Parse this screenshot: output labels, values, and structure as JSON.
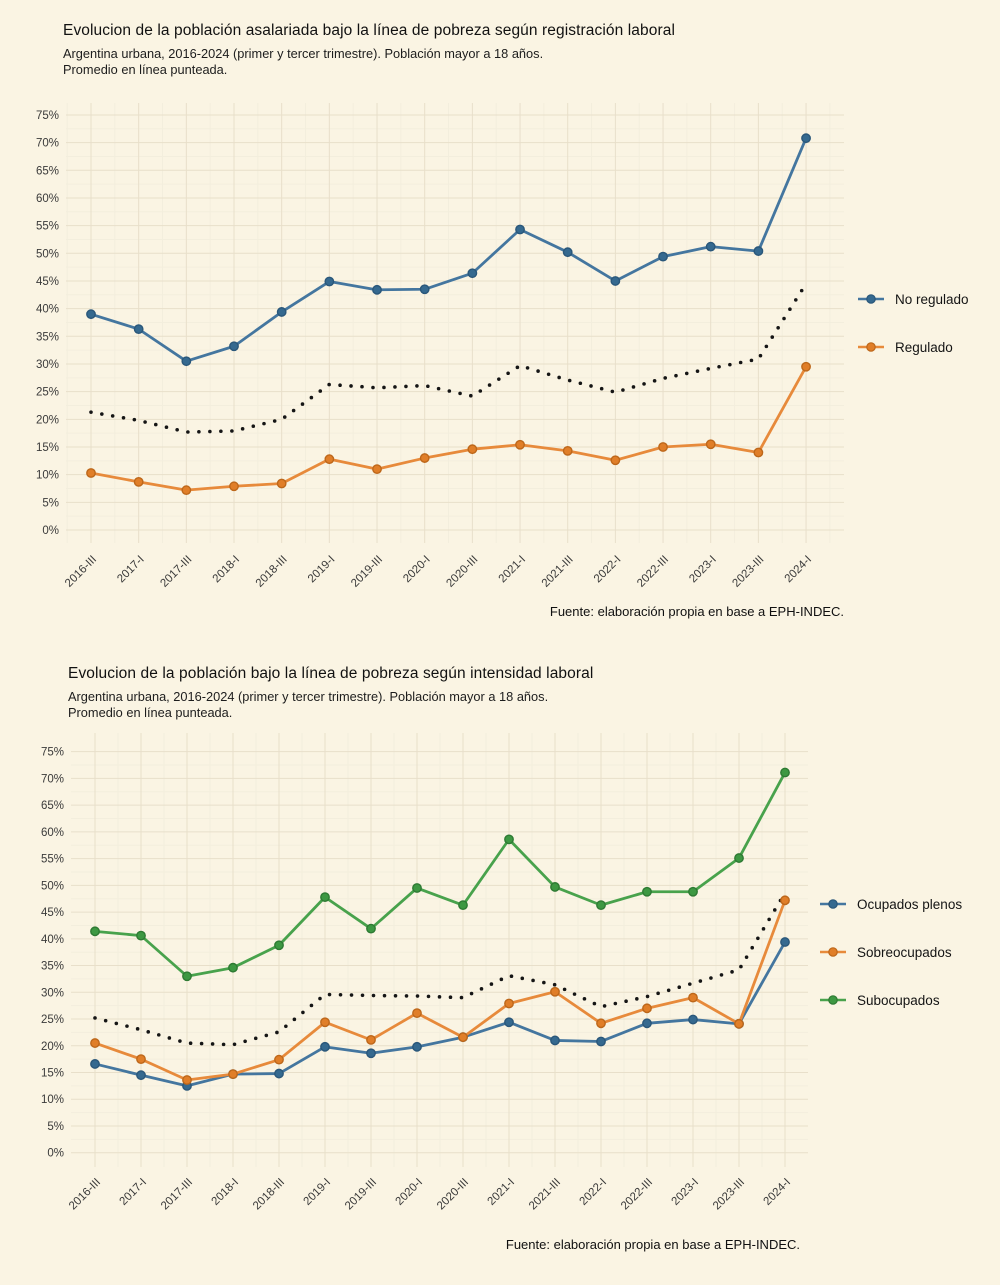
{
  "page": {
    "background_color": "#faf4e3",
    "grid_major_color": "#e8dfca",
    "grid_minor_color": "#f3eedd",
    "axis_text_color": "#3a3a3a"
  },
  "chart_data": [
    {
      "type": "line",
      "title": "Evolucion de la población asalariada bajo la línea de pobreza según registración laboral",
      "subtitle_line1": "Argentina urbana, 2016-2024 (primer y tercer trimestre). Población mayor a 18 años.",
      "subtitle_line2": "Promedio en línea punteada.",
      "source": "Fuente: elaboración propia en base a EPH-INDEC.",
      "categories": [
        "2016-III",
        "2017-I",
        "2017-III",
        "2018-I",
        "2018-III",
        "2019-I",
        "2019-III",
        "2020-I",
        "2020-III",
        "2021-I",
        "2021-III",
        "2022-I",
        "2022-III",
        "2023-I",
        "2023-III",
        "2024-I"
      ],
      "series": [
        {
          "name": "No regulado",
          "style": "solid",
          "color": "#44769f",
          "dot_fill": "#35698f",
          "dot_ring": "#2a577a",
          "in_legend": true,
          "values": [
            39.0,
            36.3,
            30.5,
            33.2,
            39.4,
            44.9,
            43.4,
            43.5,
            46.4,
            54.3,
            50.2,
            45.0,
            49.4,
            51.2,
            50.4,
            70.8
          ]
        },
        {
          "name": "Regulado",
          "style": "solid",
          "color": "#e78a3b",
          "dot_fill": "#e07e28",
          "dot_ring": "#bd671a",
          "in_legend": true,
          "values": [
            10.3,
            8.7,
            7.2,
            7.9,
            8.4,
            12.8,
            11.0,
            13.0,
            14.6,
            15.4,
            14.3,
            12.6,
            15.0,
            15.5,
            14.0,
            29.5
          ]
        },
        {
          "name": "Promedio",
          "style": "dotted",
          "color": "#151515",
          "in_legend": false,
          "values": [
            21.3,
            19.8,
            17.7,
            17.9,
            20.0,
            26.3,
            25.7,
            26.1,
            24.2,
            29.7,
            27.1,
            24.9,
            27.4,
            29.2,
            30.9,
            44.5
          ]
        }
      ],
      "ylim": [
        0,
        75
      ],
      "ytick_step": 5,
      "ytick_suffix": "%",
      "grid": true,
      "legend_position": "right"
    },
    {
      "type": "line",
      "title": "Evolucion de la población bajo la línea de pobreza según intensidad laboral",
      "subtitle_line1": "Argentina urbana, 2016-2024 (primer y tercer trimestre). Población mayor a 18 años.",
      "subtitle_line2": "Promedio en línea punteada.",
      "source": "Fuente: elaboración propia en base a EPH-INDEC.",
      "categories": [
        "2016-III",
        "2017-I",
        "2017-III",
        "2018-I",
        "2018-III",
        "2019-I",
        "2019-III",
        "2020-I",
        "2020-III",
        "2021-I",
        "2021-III",
        "2022-I",
        "2022-III",
        "2023-I",
        "2023-III",
        "2024-I"
      ],
      "series": [
        {
          "name": "Ocupados plenos",
          "style": "solid",
          "color": "#44769f",
          "dot_fill": "#35698f",
          "dot_ring": "#2a577a",
          "in_legend": true,
          "values": [
            16.6,
            14.5,
            12.5,
            14.7,
            14.8,
            19.8,
            18.6,
            19.8,
            21.6,
            24.4,
            21.0,
            20.8,
            24.2,
            24.9,
            24.1,
            39.4
          ]
        },
        {
          "name": "Sobreocupados",
          "style": "solid",
          "color": "#e78a3b",
          "dot_fill": "#e07e28",
          "dot_ring": "#bd671a",
          "in_legend": true,
          "values": [
            20.5,
            17.5,
            13.6,
            14.7,
            17.4,
            24.4,
            21.1,
            26.1,
            21.6,
            27.9,
            30.1,
            24.2,
            27.0,
            29.0,
            24.1,
            47.2
          ]
        },
        {
          "name": "Subocupados",
          "style": "solid",
          "color": "#48a24c",
          "dot_fill": "#3d9842",
          "dot_ring": "#2e7a33",
          "in_legend": true,
          "values": [
            41.4,
            40.6,
            33.0,
            34.6,
            38.8,
            47.8,
            41.9,
            49.5,
            46.3,
            58.6,
            49.7,
            46.3,
            48.8,
            48.8,
            55.1,
            71.1
          ]
        },
        {
          "name": "Promedio",
          "style": "dotted",
          "color": "#151515",
          "in_legend": false,
          "values": [
            25.2,
            23.0,
            20.5,
            20.2,
            22.6,
            29.6,
            29.4,
            29.3,
            29.0,
            33.1,
            31.4,
            27.3,
            29.2,
            31.7,
            34.2,
            48.6
          ]
        }
      ],
      "ylim": [
        0,
        75
      ],
      "ytick_step": 5,
      "ytick_suffix": "%",
      "grid": true,
      "legend_position": "right"
    }
  ]
}
